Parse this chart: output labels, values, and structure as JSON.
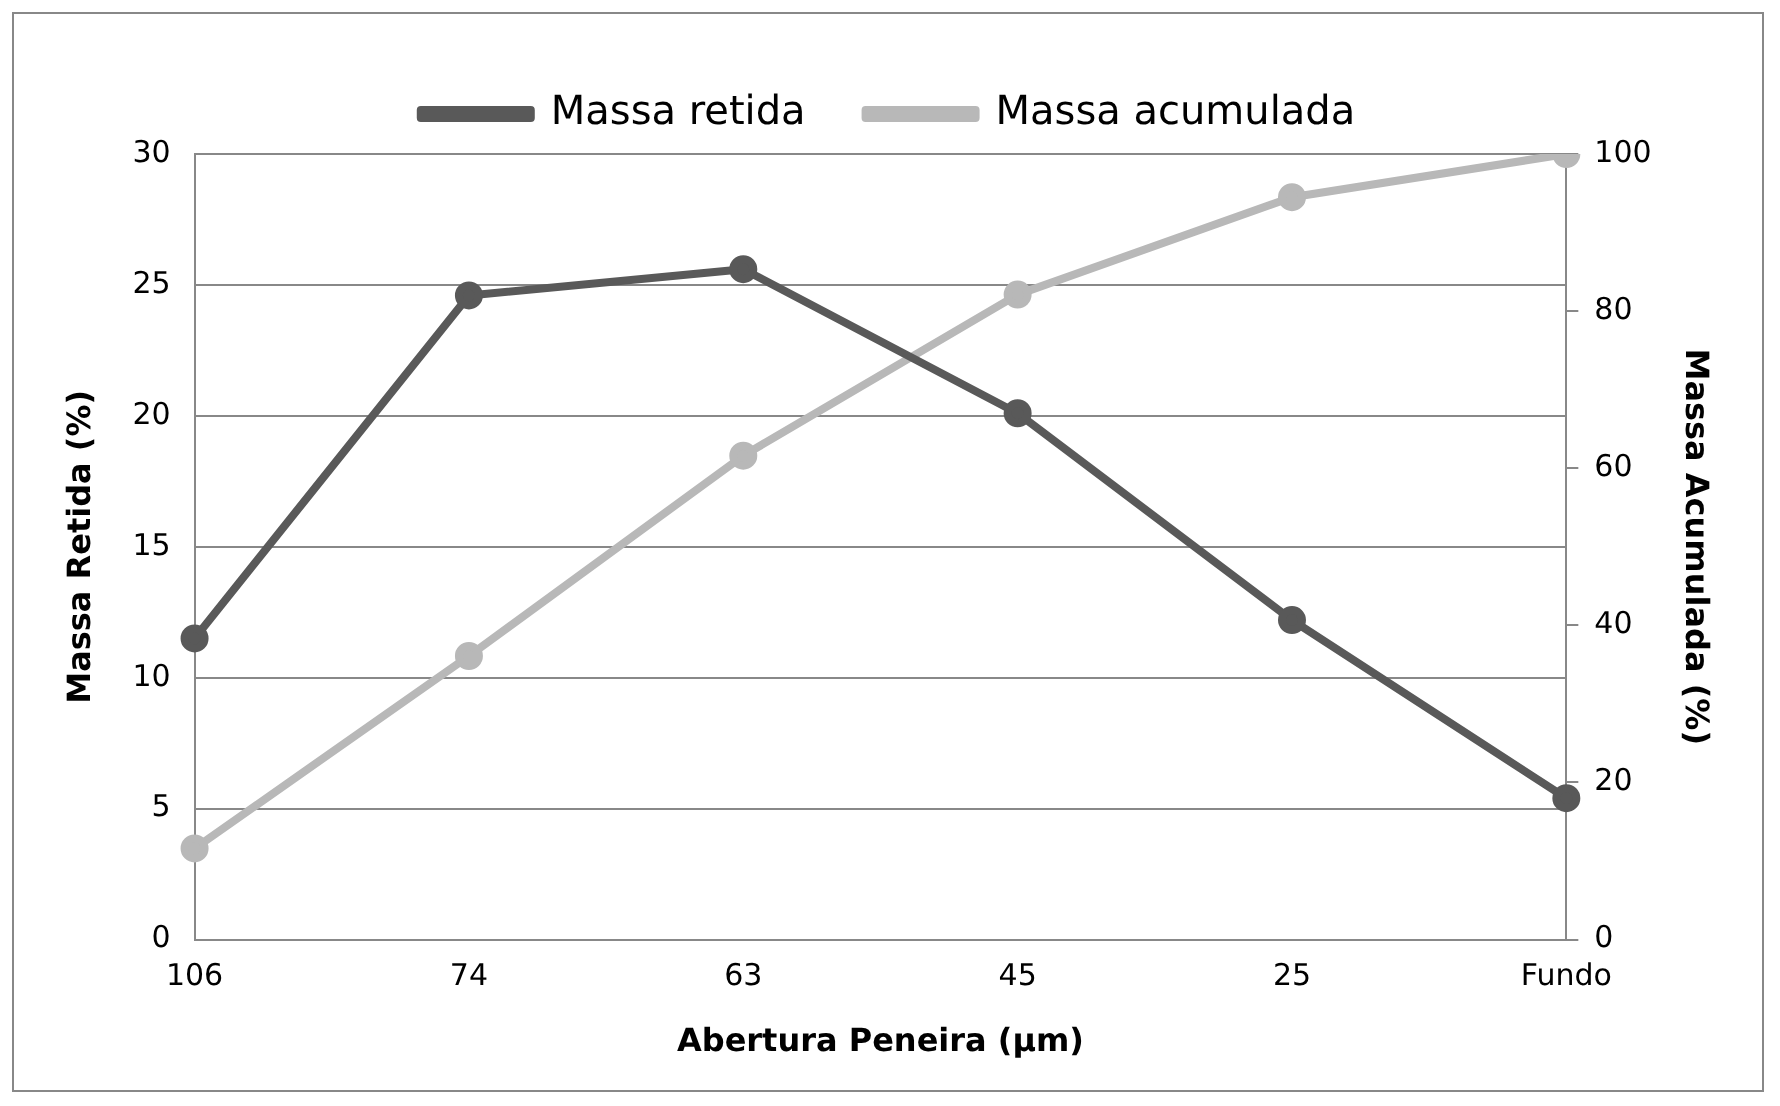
{
  "chart_data": {
    "type": "line",
    "xlabel": "Abertura Peneira (µm)",
    "ylabel": "Massa Retida (%)",
    "y2label": "Massa Acumulada (%)",
    "categories": [
      "106",
      "74",
      "63",
      "45",
      "25",
      "Fundo"
    ],
    "series": [
      {
        "name": "Massa retida",
        "color": "#595959",
        "values": [
          11.5,
          24.6,
          25.6,
          20.1,
          12.2,
          5.4
        ]
      },
      {
        "name": "Massa acumulada",
        "color": "#b8b8b8",
        "axis": "y2",
        "values": [
          11.6,
          36.1,
          61.6,
          82.1,
          94.5,
          100
        ]
      }
    ],
    "ylim": [
      0,
      30
    ],
    "yticks": [
      0,
      5,
      10,
      15,
      20,
      25,
      30
    ],
    "y2lim": [
      0,
      100
    ],
    "y2ticks": [
      0,
      20,
      40,
      60,
      80,
      100
    ],
    "grid": "y",
    "legend": "top",
    "marker": "circle",
    "line_style": "solid"
  }
}
